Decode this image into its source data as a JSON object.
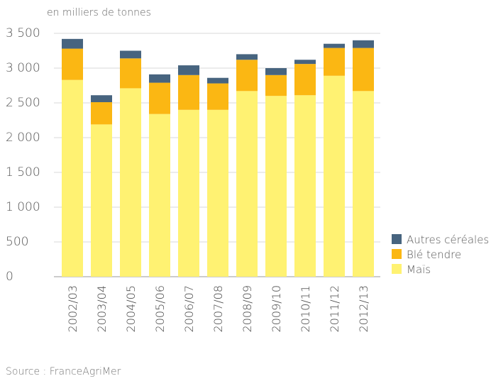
{
  "chart_data": {
    "type": "bar",
    "stacked": true,
    "categories": [
      "2002/03",
      "2003/04",
      "2004/05",
      "2005/06",
      "2006/07",
      "2007/08",
      "2008/09",
      "2009/10",
      "2010/11",
      "2011/12",
      "2012/13"
    ],
    "series": [
      {
        "name": "Maïs",
        "color": "#fff272",
        "values": [
          2830,
          2190,
          2710,
          2340,
          2400,
          2400,
          2670,
          2600,
          2610,
          2890,
          2670
        ]
      },
      {
        "name": "Blé tendre",
        "color": "#fbb713",
        "values": [
          450,
          320,
          430,
          450,
          500,
          380,
          450,
          300,
          450,
          400,
          620
        ]
      },
      {
        "name": "Autres céréales",
        "color": "#47647f",
        "values": [
          140,
          100,
          110,
          120,
          140,
          80,
          80,
          100,
          60,
          60,
          110
        ]
      }
    ],
    "ylim": [
      0,
      3500
    ],
    "yticks": [
      0,
      500,
      1000,
      1500,
      2000,
      2500,
      3000,
      3500
    ],
    "ytick_labels": [
      "0",
      "500",
      "1 000",
      "1 500",
      "2 000",
      "2 500",
      "3 000",
      "3 500"
    ],
    "legend_order": [
      "Autres céréales",
      "Blé tendre",
      "Maïs"
    ],
    "legend_position": "right",
    "grid": true
  },
  "unit_label": "en milliers de tonnes",
  "source": "Source : FranceAgriMer"
}
